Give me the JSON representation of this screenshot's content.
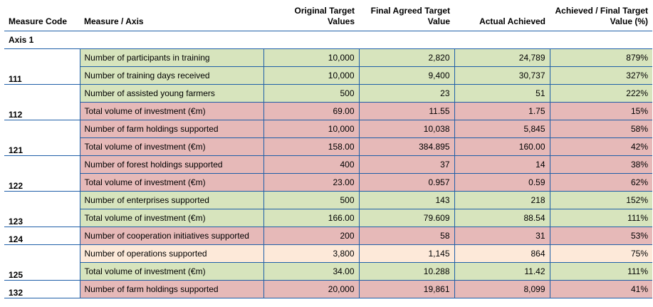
{
  "headers": [
    "Measure Code",
    "Measure / Axis",
    "Original Target Values",
    "Final Agreed Target Value",
    "Actual Achieved",
    "Achieved / Final Target Value (%)"
  ],
  "axis_label": "Axis 1",
  "rows": [
    {
      "code": "",
      "measure": "Number of participants in training",
      "original": "10,000",
      "final": "2,820",
      "actual": "24,789",
      "pct": "879%"
    },
    {
      "code": "111",
      "measure": "Number of training days received",
      "original": "10,000",
      "final": "9,400",
      "actual": "30,737",
      "pct": "327%"
    },
    {
      "code": "",
      "measure": "Number of assisted young farmers",
      "original": "500",
      "final": "23",
      "actual": "51",
      "pct": "222%"
    },
    {
      "code": "112",
      "measure": "Total volume of investment (€m)",
      "original": "69.00",
      "final": "11.55",
      "actual": "1.75",
      "pct": "15%"
    },
    {
      "code": "",
      "measure": "Number of farm holdings supported",
      "original": "10,000",
      "final": "10,038",
      "actual": "5,845",
      "pct": "58%"
    },
    {
      "code": "121",
      "measure": "Total volume of investment (€m)",
      "original": "158.00",
      "final": "384.895",
      "actual": "160.00",
      "pct": "42%"
    },
    {
      "code": "",
      "measure": "Number of forest holdings supported",
      "original": "400",
      "final": "37",
      "actual": "14",
      "pct": "38%"
    },
    {
      "code": "122",
      "measure": "Total volume of investment (€m)",
      "original": "23.00",
      "final": "0.957",
      "actual": "0.59",
      "pct": "62%"
    },
    {
      "code": "",
      "measure": "Number of enterprises supported",
      "original": "500",
      "final": "143",
      "actual": "218",
      "pct": "152%"
    },
    {
      "code": "123",
      "measure": "Total volume of investment (€m)",
      "original": "166.00",
      "final": "79.609",
      "actual": "88.54",
      "pct": "111%"
    },
    {
      "code": "124",
      "measure": "Number of cooperation initiatives supported",
      "original": "200",
      "final": "58",
      "actual": "31",
      "pct": "53%"
    },
    {
      "code": "",
      "measure": "Number of operations supported",
      "original": "3,800",
      "final": "1,145",
      "actual": "864",
      "pct": "75%"
    },
    {
      "code": "125",
      "measure": "Total volume of investment (€m)",
      "original": "34.00",
      "final": "10.288",
      "actual": "11.42",
      "pct": "111%"
    },
    {
      "code": "132",
      "measure": "Number of farm holdings supported",
      "original": "20,000",
      "final": "19,861",
      "actual": "8,099",
      "pct": "41%"
    }
  ],
  "colors": {
    "green": "#d7e4bd",
    "red": "#e6b9b8",
    "peach": "#fde9d9",
    "border": "#1f5fa8"
  }
}
